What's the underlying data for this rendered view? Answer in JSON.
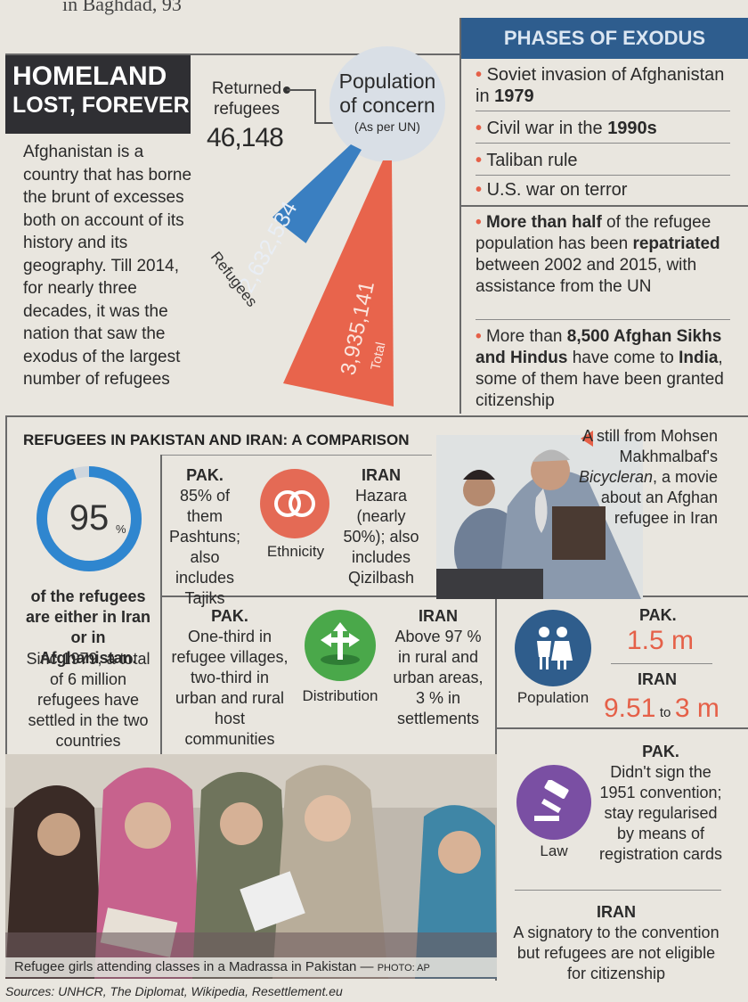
{
  "top_cut": "in Baghdad, 93",
  "title": {
    "line1": "HOMELAND",
    "line2": "LOST, FOREVER"
  },
  "intro": "Afghanistan is a country that has borne the brunt of excesses both on account of its history and its geography. Till 2014, for nearly three decades, it was the nation that saw the exodus of the largest number of refugees",
  "returned": {
    "label": "Returned refugees",
    "value": "46,148"
  },
  "population_of_concern": {
    "title": "Population of concern",
    "sub": "(As per UN)"
  },
  "chart_data": {
    "type": "bar",
    "categories": [
      "Refugees",
      "Total"
    ],
    "values": [
      2632534,
      3935141
    ],
    "value_labels": [
      "2,632,534",
      "3,935,141"
    ],
    "colors": [
      "#3a7fc1",
      "#e8644c"
    ]
  },
  "phases": {
    "header": "PHASES OF EXODUS",
    "items": [
      {
        "text": "Soviet invasion of Afghanistan in",
        "bold": "1979"
      },
      {
        "text": "Civil war in the",
        "bold": "1990s"
      },
      {
        "text": "Taliban rule",
        "bold": ""
      },
      {
        "text": "U.S. war on terror",
        "bold": ""
      }
    ],
    "note1": {
      "b1": "More than half",
      "t1": " of the refugee population has been ",
      "b2": "repatriated",
      "t2": " between 2002 and 2015, with assistance from the UN"
    },
    "note2": {
      "t1": "More than ",
      "b1": "8,500 Afghan Sikhs and Hindus",
      "t2": " have come to ",
      "b2": "India",
      "t3": ", some of them have been granted citizenship"
    }
  },
  "comparison": {
    "header": "REFUGEES IN PAKISTAN AND IRAN: A COMPARISON",
    "donut": {
      "value": "95",
      "unit": "%",
      "fraction": 0.95,
      "bold_text": "of the refugees are either in Iran or in Afghanistan.",
      "text": "Sinc 1979, a total of 6 million refugees have settled in the two countries"
    },
    "ethnicity": {
      "label": "Ethnicity",
      "pak_head": "PAK.",
      "pak": "85% of them Pashtuns; also includes Tajiks",
      "iran_head": "IRAN",
      "iran": "Hazara (nearly 50%); also includes Qizilbash"
    },
    "distribution": {
      "label": "Distribution",
      "pak_head": "PAK.",
      "pak": "One-third in refugee villages, two-third in urban and rural host communities",
      "iran_head": "IRAN",
      "iran": "Above 97 % in rural and urban areas, 3 % in settlements"
    },
    "population": {
      "label": "Population",
      "pak_head": "PAK.",
      "pak": "1.5 m",
      "iran_head": "IRAN",
      "iran_a": "9.51",
      "iran_to": "to",
      "iran_b": "3 m"
    },
    "law": {
      "label": "Law",
      "pak_head": "PAK.",
      "pak": "Didn't sign the 1951 convention; stay regularised by means of registration cards",
      "iran_head": "IRAN",
      "iran": "A signatory to the convention but refugees are not eligible for citizenship"
    }
  },
  "still_caption": {
    "t1": "A still from Mohsen Makhmalbaf's ",
    "italic": "Bicycleran",
    "t2": ", a movie about an Afghan refugee in Iran"
  },
  "photo_caption": {
    "text": "Refugee girls attending classes in a Madrassa in Pakistan — ",
    "credit": "PHOTO: AP"
  },
  "sources": "Sources: UNHCR, The Diplomat, Wikipedia, Resettlement.eu"
}
